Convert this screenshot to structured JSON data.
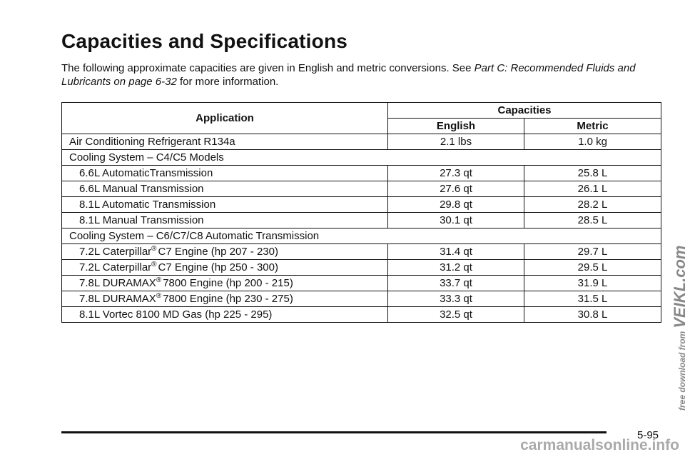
{
  "header": {
    "title": "Capacities and Specifications",
    "intro": {
      "before": "The following approximate capacities are given in English and metric conversions. See",
      "link": "Part C: Recommended Fluids and Lubricants on page 6-32",
      "after": "for more information."
    }
  },
  "table": {
    "headers": {
      "application": "Application",
      "capacities": "Capacities",
      "english": "English",
      "metric": "Metric"
    },
    "rows": [
      {
        "application": "Air Conditioning Refrigerant R134a",
        "english": "2.1 lbs",
        "metric": "1.0 kg"
      },
      {
        "section": "Cooling System – C4/C5 Models"
      },
      {
        "application": "6.6L AutomaticTransmission",
        "english": "27.3 qt",
        "metric": "25.8 L"
      },
      {
        "application": "6.6L Manual Transmission",
        "english": "27.6 qt",
        "metric": "26.1 L"
      },
      {
        "application": "8.1L Automatic Transmission",
        "english": "29.8 qt",
        "metric": "28.2 L"
      },
      {
        "application": "8.1L Manual Transmission",
        "english": "30.1 qt",
        "metric": "28.5 L"
      },
      {
        "section": "Cooling System – C6/C7/C8 Automatic Transmission"
      },
      {
        "application": {
          "text": "7.2L Caterpillar",
          "sup": "®",
          "rest": "C7 Engine (hp 207 - 230)"
        },
        "english": "31.4 qt",
        "metric": "29.7 L"
      },
      {
        "application": {
          "text": "7.2L Caterpillar",
          "sup": "®",
          "rest": "C7 Engine (hp 250 - 300)"
        },
        "english": "31.2 qt",
        "metric": "29.5 L"
      },
      {
        "application": {
          "text": "7.8L DURAMAX",
          "sup": "®",
          "rest": "7800 Engine (hp 200 - 215)"
        },
        "english": "33.7 qt",
        "metric": "31.9 L"
      },
      {
        "application": {
          "text": "7.8L DURAMAX",
          "sup": "®",
          "rest": "7800 Engine (hp 230 - 275)"
        },
        "english": "33.3 qt",
        "metric": "31.5 L"
      },
      {
        "application": "8.1L Vortec 8100 MD Gas (hp 225 - 295)",
        "english": "32.5 qt",
        "metric": "30.8 L"
      }
    ]
  },
  "footer": {
    "page": "5-95"
  },
  "watermark": {
    "prefix": "free download from",
    "brand": "VEIKL.com",
    "site": "carmanualsonline.info"
  }
}
